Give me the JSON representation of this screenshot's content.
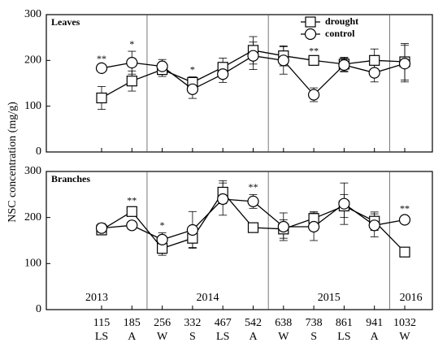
{
  "chart_data": [
    {
      "type": "line",
      "title": "Leaves",
      "ylabel": "NSC concentration (mg/g)",
      "categories": [
        "115",
        "185",
        "256",
        "332",
        "467",
        "542",
        "638",
        "738",
        "861",
        "941",
        "1032"
      ],
      "dividers": [
        "185",
        "542",
        "941"
      ],
      "ylim": [
        0,
        300
      ],
      "yticks": [
        0,
        100,
        200,
        300
      ],
      "legend": "top-right",
      "series": [
        {
          "name": "drought",
          "color": "#000000",
          "marker": "square",
          "values": [
            118,
            155,
            180,
            152,
            185,
            222,
            210,
            200,
            192,
            200,
            197
          ],
          "errors": [
            25,
            22,
            15,
            12,
            20,
            30,
            22,
            5,
            15,
            25,
            40
          ]
        },
        {
          "name": "control",
          "color": "#000000",
          "marker": "circle",
          "values": [
            183,
            195,
            187,
            137,
            170,
            210,
            200,
            125,
            190,
            173,
            193
          ],
          "errors": [
            5,
            25,
            15,
            20,
            18,
            30,
            30,
            15,
            15,
            20,
            40
          ]
        }
      ],
      "annotations": [
        {
          "text": "**",
          "at": "115"
        },
        {
          "text": "*",
          "at": "185"
        },
        {
          "text": "*",
          "at": "332"
        },
        {
          "text": "**",
          "at": "738"
        }
      ]
    },
    {
      "type": "line",
      "title": "Branches",
      "categories": [
        "115",
        "185",
        "256",
        "332",
        "467",
        "542",
        "638",
        "738",
        "861",
        "941",
        "1032"
      ],
      "seasons": [
        "LS",
        "A",
        "W",
        "S",
        "LS",
        "A",
        "W",
        "S",
        "LS",
        "A",
        "W"
      ],
      "dividers": [
        "185",
        "542",
        "941"
      ],
      "year_labels": [
        "2013",
        "2014",
        "2015",
        "2016"
      ],
      "ylim": [
        0,
        300
      ],
      "yticks": [
        0,
        100,
        200,
        300
      ],
      "series": [
        {
          "name": "drought",
          "color": "#000000",
          "marker": "square",
          "values": [
            173,
            213,
            133,
            155,
            255,
            178,
            175,
            198,
            225,
            192,
            125
          ],
          "errors": [
            10,
            8,
            15,
            20,
            25,
            5,
            20,
            15,
            25,
            20,
            5
          ]
        },
        {
          "name": "control",
          "color": "#000000",
          "marker": "circle",
          "values": [
            177,
            183,
            152,
            173,
            240,
            235,
            180,
            180,
            230,
            183,
            195
          ],
          "errors": [
            10,
            8,
            15,
            40,
            35,
            15,
            30,
            30,
            45,
            25,
            8
          ]
        }
      ],
      "annotations": [
        {
          "text": "**",
          "at": "185"
        },
        {
          "text": "*",
          "at": "256"
        },
        {
          "text": "**",
          "at": "542"
        },
        {
          "text": "**",
          "at": "1032"
        }
      ]
    }
  ]
}
